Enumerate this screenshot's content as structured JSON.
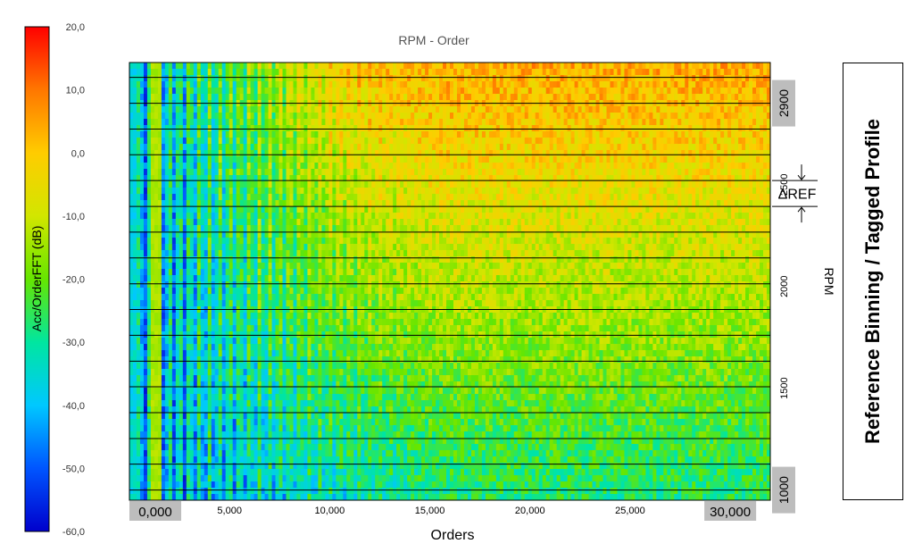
{
  "chart_data": {
    "type": "heatmap",
    "title": "RPM - Order",
    "xlabel": "Orders",
    "ylabel": "RPM",
    "xlim": [
      0,
      32
    ],
    "ylim": [
      950,
      3100
    ],
    "x_ticks": [
      "0,000",
      "5,000",
      "10,000",
      "15,000",
      "20,000",
      "25,000",
      "30,000"
    ],
    "x_tick_values": [
      0,
      5,
      10,
      15,
      20,
      25,
      30
    ],
    "x_tick_highlight": [
      true,
      false,
      false,
      false,
      false,
      false,
      true
    ],
    "y_ticks": [
      "1000",
      "1500",
      "2000",
      "2500",
      "2900"
    ],
    "y_tick_values": [
      1000,
      1500,
      2000,
      2500,
      2900
    ],
    "y_tick_highlight": [
      true,
      false,
      false,
      false,
      true
    ],
    "rpm_bins": [
      1000,
      1127,
      1253,
      1380,
      1507,
      1633,
      1760,
      1887,
      2013,
      2140,
      2267,
      2393,
      2520,
      2647,
      2773,
      2900,
      3027
    ],
    "annotation": "ΔREF",
    "annotation_rpm_range": [
      2393,
      2520
    ],
    "colorbar": {
      "label": "Acc/OrderFFT (dB)",
      "range": [
        -60,
        20
      ],
      "ticks": [
        "20,0",
        "10,0",
        "0,0",
        "-10,0",
        "-20,0",
        "-30,0",
        "-40,0",
        "-50,0",
        "-60,0"
      ],
      "tick_values": [
        20,
        10,
        0,
        -10,
        -20,
        -30,
        -40,
        -50,
        -60
      ],
      "colors": [
        "#0000cc",
        "#0055ff",
        "#00c8ff",
        "#00e6a0",
        "#66e600",
        "#d2e600",
        "#ffcc00",
        "#ff7700",
        "#ff0000"
      ]
    }
  },
  "side_label": "Reference Binning / Tagged Profile"
}
